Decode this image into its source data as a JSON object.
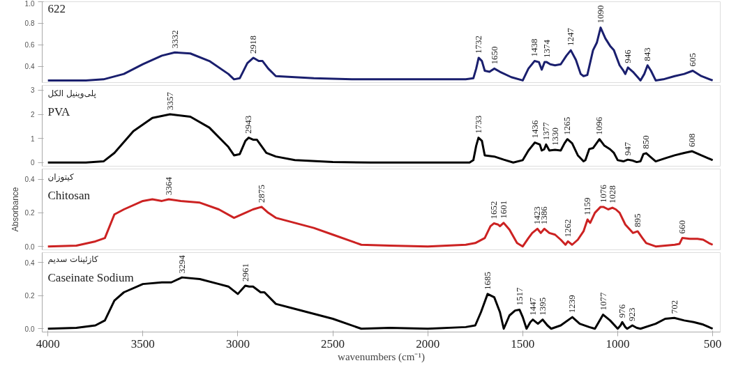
{
  "chart_data": [
    {
      "type": "line",
      "xlim": [
        4030,
        460
      ],
      "ylim": [
        0.25,
        1.0
      ],
      "yticks": [
        {
          "value": 0.4,
          "label": "0.4"
        },
        {
          "value": 0.6,
          "label": "0.6"
        },
        {
          "value": 0.8,
          "label": "0.8"
        },
        {
          "value": 1.0,
          "label": "1.0"
        }
      ],
      "tick_labels": "y",
      "grid": false,
      "legend": false,
      "series": [
        {
          "name": "622",
          "color": "#1a1f6e",
          "x": [
            4000,
            3800,
            3707,
            3600,
            3500,
            3400,
            3332,
            3250,
            3150,
            3050,
            3020,
            2990,
            2950,
            2918,
            2890,
            2870,
            2840,
            2800,
            2600,
            2400,
            2200,
            2000,
            1800,
            1760,
            1745,
            1732,
            1715,
            1700,
            1675,
            1650,
            1620,
            1560,
            1500,
            1470,
            1438,
            1415,
            1400,
            1385,
            1374,
            1355,
            1330,
            1300,
            1270,
            1247,
            1220,
            1195,
            1180,
            1160,
            1130,
            1110,
            1090,
            1065,
            1040,
            1020,
            990,
            970,
            960,
            946,
            920,
            890,
            880,
            860,
            843,
            825,
            800,
            760,
            700,
            650,
            605,
            560,
            500
          ],
          "values": [
            0.27,
            0.27,
            0.28,
            0.33,
            0.42,
            0.5,
            0.53,
            0.52,
            0.45,
            0.33,
            0.28,
            0.29,
            0.43,
            0.48,
            0.45,
            0.45,
            0.38,
            0.31,
            0.29,
            0.28,
            0.28,
            0.28,
            0.28,
            0.29,
            0.38,
            0.48,
            0.45,
            0.36,
            0.35,
            0.38,
            0.35,
            0.3,
            0.27,
            0.38,
            0.45,
            0.44,
            0.37,
            0.44,
            0.44,
            0.42,
            0.41,
            0.42,
            0.5,
            0.55,
            0.46,
            0.33,
            0.31,
            0.32,
            0.55,
            0.62,
            0.76,
            0.66,
            0.59,
            0.55,
            0.41,
            0.36,
            0.33,
            0.39,
            0.35,
            0.29,
            0.27,
            0.33,
            0.41,
            0.36,
            0.27,
            0.28,
            0.31,
            0.33,
            0.36,
            0.31,
            0.27
          ]
        }
      ],
      "annotations": [
        {
          "text": "3332",
          "x": 3332,
          "y": 0.53
        },
        {
          "text": "2918",
          "x": 2918,
          "y": 0.48
        },
        {
          "text": "1732",
          "x": 1732,
          "y": 0.48
        },
        {
          "text": "1650",
          "x": 1650,
          "y": 0.38
        },
        {
          "text": "1438",
          "x": 1438,
          "y": 0.45
        },
        {
          "text": "1374",
          "x": 1374,
          "y": 0.44
        },
        {
          "text": "1247",
          "x": 1247,
          "y": 0.55
        },
        {
          "text": "1090",
          "x": 1090,
          "y": 0.76
        },
        {
          "text": "946",
          "x": 946,
          "y": 0.39
        },
        {
          "text": "843",
          "x": 843,
          "y": 0.41
        },
        {
          "text": "605",
          "x": 605,
          "y": 0.36
        }
      ]
    },
    {
      "type": "line",
      "xlim": [
        4030,
        460
      ],
      "ylim": [
        -0.15,
        3.2
      ],
      "yticks": [
        0,
        1,
        2,
        3
      ],
      "tick_labels": "y",
      "grid": false,
      "legend": false,
      "series": [
        {
          "name": "PVA",
          "color": "#000000",
          "x": [
            4000,
            3800,
            3707,
            3650,
            3550,
            3450,
            3357,
            3250,
            3150,
            3050,
            3020,
            2990,
            2960,
            2943,
            2920,
            2900,
            2850,
            2800,
            2700,
            2500,
            2300,
            2100,
            1900,
            1780,
            1760,
            1745,
            1733,
            1715,
            1700,
            1650,
            1600,
            1550,
            1500,
            1470,
            1436,
            1410,
            1400,
            1387,
            1377,
            1360,
            1330,
            1300,
            1280,
            1265,
            1240,
            1210,
            1180,
            1170,
            1150,
            1130,
            1096,
            1070,
            1040,
            1020,
            1000,
            970,
            947,
            920,
            900,
            880,
            865,
            850,
            830,
            800,
            750,
            700,
            650,
            608,
            560,
            500
          ],
          "values": [
            0.0,
            0.0,
            0.05,
            0.4,
            1.3,
            1.85,
            2.0,
            1.9,
            1.45,
            0.65,
            0.3,
            0.35,
            0.9,
            1.03,
            0.95,
            0.95,
            0.4,
            0.25,
            0.1,
            0.02,
            0.0,
            0.0,
            0.0,
            0.0,
            0.1,
            0.7,
            1.03,
            0.9,
            0.3,
            0.25,
            0.12,
            0.0,
            0.1,
            0.5,
            0.83,
            0.75,
            0.5,
            0.55,
            0.75,
            0.5,
            0.53,
            0.5,
            0.8,
            0.97,
            0.8,
            0.3,
            0.05,
            0.1,
            0.56,
            0.6,
            0.97,
            0.7,
            0.55,
            0.4,
            0.1,
            0.05,
            0.12,
            0.08,
            0.02,
            0.05,
            0.35,
            0.39,
            0.25,
            0.05,
            0.18,
            0.3,
            0.4,
            0.47,
            0.3,
            0.1
          ]
        }
      ],
      "annotations": [
        "پلی‌وینیل الکل",
        {
          "text": "3357",
          "x": 3357,
          "y": 2.0
        },
        {
          "text": "2943",
          "x": 2943,
          "y": 1.03
        },
        {
          "text": "1733",
          "x": 1733,
          "y": 1.03
        },
        {
          "text": "1436",
          "x": 1436,
          "y": 0.83
        },
        {
          "text": "1377",
          "x": 1377,
          "y": 0.75
        },
        {
          "text": "1330",
          "x": 1330,
          "y": 0.53
        },
        {
          "text": "1265",
          "x": 1265,
          "y": 0.97
        },
        {
          "text": "1096",
          "x": 1096,
          "y": 0.97
        },
        {
          "text": "947",
          "x": 947,
          "y": 0.12
        },
        {
          "text": "850",
          "x": 850,
          "y": 0.39
        },
        {
          "text": "608",
          "x": 608,
          "y": 0.47
        }
      ]
    },
    {
      "type": "line",
      "xlim": [
        4030,
        460
      ],
      "ylim": [
        -0.02,
        0.46
      ],
      "yticks": [
        {
          "value": 0.0,
          "label": "0.0"
        },
        {
          "value": 0.2,
          "label": "0.2"
        },
        {
          "value": 0.4,
          "label": "0.4"
        }
      ],
      "tick_labels": "y",
      "grid": false,
      "legend": false,
      "ylabel": "Absorbance",
      "series": [
        {
          "name": "Chitosan",
          "color": "#cc2222",
          "x": [
            4000,
            3850,
            3750,
            3700,
            3650,
            3600,
            3500,
            3450,
            3400,
            3364,
            3300,
            3200,
            3100,
            3020,
            2960,
            2920,
            2875,
            2840,
            2800,
            2700,
            2600,
            2500,
            2400,
            2350,
            2200,
            2000,
            1800,
            1750,
            1700,
            1670,
            1652,
            1630,
            1620,
            1601,
            1570,
            1530,
            1500,
            1470,
            1450,
            1423,
            1405,
            1386,
            1360,
            1330,
            1300,
            1275,
            1262,
            1240,
            1210,
            1180,
            1159,
            1145,
            1120,
            1090,
            1076,
            1050,
            1028,
            1010,
            990,
            960,
            920,
            895,
            870,
            850,
            800,
            700,
            675,
            660,
            620,
            580,
            550,
            520,
            500
          ],
          "values": [
            0.0,
            0.005,
            0.03,
            0.05,
            0.19,
            0.22,
            0.27,
            0.28,
            0.27,
            0.28,
            0.27,
            0.26,
            0.22,
            0.17,
            0.2,
            0.22,
            0.235,
            0.2,
            0.17,
            0.14,
            0.11,
            0.07,
            0.03,
            0.01,
            0.005,
            0.0,
            0.01,
            0.02,
            0.05,
            0.12,
            0.137,
            0.13,
            0.12,
            0.14,
            0.1,
            0.02,
            0.0,
            0.05,
            0.08,
            0.105,
            0.08,
            0.105,
            0.08,
            0.07,
            0.04,
            0.01,
            0.03,
            0.01,
            0.04,
            0.09,
            0.16,
            0.14,
            0.2,
            0.235,
            0.235,
            0.22,
            0.23,
            0.22,
            0.2,
            0.13,
            0.08,
            0.09,
            0.05,
            0.02,
            0.0,
            0.01,
            0.015,
            0.05,
            0.045,
            0.045,
            0.04,
            0.02,
            0.01
          ]
        }
      ],
      "annotations": [
        "کیتوزان",
        {
          "text": "3364",
          "x": 3364,
          "y": 0.28
        },
        {
          "text": "2875",
          "x": 2875,
          "y": 0.235
        },
        {
          "text": "1652",
          "x": 1652,
          "y": 0.137
        },
        {
          "text": "1601",
          "x": 1601,
          "y": 0.14
        },
        {
          "text": "1423",
          "x": 1423,
          "y": 0.105
        },
        {
          "text": "1386",
          "x": 1386,
          "y": 0.105
        },
        {
          "text": "1262",
          "x": 1262,
          "y": 0.03
        },
        {
          "text": "1159",
          "x": 1159,
          "y": 0.16
        },
        {
          "text": "1076",
          "x": 1076,
          "y": 0.235
        },
        {
          "text": "1028",
          "x": 1028,
          "y": 0.23
        },
        {
          "text": "895",
          "x": 895,
          "y": 0.09
        },
        {
          "text": "660",
          "x": 660,
          "y": 0.05
        }
      ]
    },
    {
      "type": "line",
      "xlim": [
        4030,
        460
      ],
      "ylim": [
        -0.02,
        0.46
      ],
      "xticks": [
        4000,
        3500,
        3000,
        2500,
        2000,
        1500,
        1000,
        500
      ],
      "yticks": [
        {
          "value": 0.0,
          "label": "0.0"
        },
        {
          "value": 0.2,
          "label": "0.2"
        },
        {
          "value": 0.4,
          "label": "0.4"
        }
      ],
      "grid": false,
      "legend": false,
      "xlabel": "wavenumbers (cm⁻¹)",
      "series": [
        {
          "name": "Caseinate Sodium",
          "color": "#000000",
          "x": [
            4000,
            3850,
            3750,
            3700,
            3650,
            3600,
            3500,
            3400,
            3350,
            3294,
            3200,
            3100,
            3050,
            3000,
            2961,
            2940,
            2920,
            2880,
            2860,
            2800,
            2700,
            2500,
            2350,
            2200,
            2000,
            1800,
            1750,
            1720,
            1685,
            1650,
            1620,
            1600,
            1570,
            1540,
            1517,
            1500,
            1480,
            1460,
            1447,
            1420,
            1395,
            1370,
            1350,
            1300,
            1239,
            1200,
            1150,
            1120,
            1077,
            1040,
            1000,
            985,
            976,
            960,
            950,
            923,
            900,
            880,
            800,
            750,
            702,
            650,
            600,
            550,
            500
          ],
          "values": [
            0.0,
            0.005,
            0.02,
            0.05,
            0.17,
            0.22,
            0.27,
            0.28,
            0.28,
            0.31,
            0.3,
            0.27,
            0.255,
            0.21,
            0.26,
            0.255,
            0.255,
            0.22,
            0.22,
            0.15,
            0.12,
            0.06,
            0.0,
            0.005,
            0.0,
            0.01,
            0.02,
            0.1,
            0.21,
            0.19,
            0.1,
            0.0,
            0.08,
            0.11,
            0.115,
            0.07,
            0.0,
            0.04,
            0.055,
            0.03,
            0.055,
            0.02,
            0.0,
            0.02,
            0.07,
            0.03,
            0.01,
            0.0,
            0.085,
            0.05,
            0.0,
            0.02,
            0.04,
            0.01,
            0.0,
            0.02,
            0.005,
            0.0,
            0.03,
            0.06,
            0.065,
            0.05,
            0.04,
            0.025,
            0.0
          ]
        }
      ],
      "annotations": [
        "کازئینات سدیم",
        {
          "text": "3294",
          "x": 3294,
          "y": 0.31
        },
        {
          "text": "2961",
          "x": 2961,
          "y": 0.26
        },
        {
          "text": "1685",
          "x": 1685,
          "y": 0.21
        },
        {
          "text": "1517",
          "x": 1517,
          "y": 0.115
        },
        {
          "text": "1447",
          "x": 1447,
          "y": 0.055
        },
        {
          "text": "1395",
          "x": 1395,
          "y": 0.055
        },
        {
          "text": "1239",
          "x": 1239,
          "y": 0.07
        },
        {
          "text": "1077",
          "x": 1077,
          "y": 0.085
        },
        {
          "text": "976",
          "x": 976,
          "y": 0.04
        },
        {
          "text": "923",
          "x": 923,
          "y": 0.02
        },
        {
          "text": "702",
          "x": 702,
          "y": 0.065
        }
      ]
    }
  ]
}
